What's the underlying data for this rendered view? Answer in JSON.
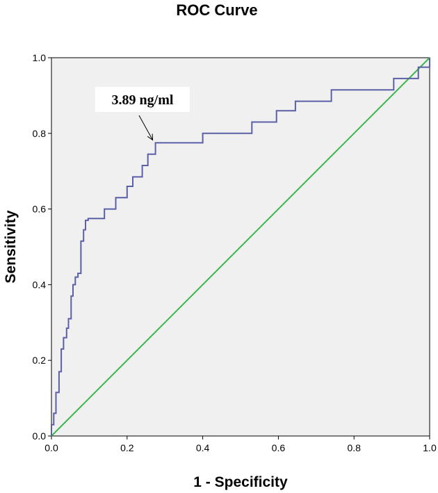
{
  "chart_data": {
    "type": "line",
    "title": "ROC Curve",
    "xlabel": "1 - Specificity",
    "ylabel": "Sensitivity",
    "xlim": [
      0.0,
      1.0
    ],
    "ylim": [
      0.0,
      1.0
    ],
    "x_ticks": [
      "0.0",
      "0.2",
      "0.4",
      "0.6",
      "0.8",
      "1.0"
    ],
    "y_ticks": [
      "0.0",
      "0.2",
      "0.4",
      "0.6",
      "0.8",
      "1.0"
    ],
    "grid": false,
    "legend": "none",
    "background_color": "#f0f0f0",
    "series": [
      {
        "color": "#5b5fa8",
        "step": true,
        "x": [
          0.0,
          0.0,
          0.006,
          0.006,
          0.012,
          0.012,
          0.02,
          0.02,
          0.026,
          0.026,
          0.032,
          0.032,
          0.04,
          0.04,
          0.045,
          0.045,
          0.052,
          0.052,
          0.057,
          0.057,
          0.063,
          0.063,
          0.07,
          0.07,
          0.078,
          0.078,
          0.085,
          0.085,
          0.09,
          0.09,
          0.097,
          0.097,
          0.103,
          0.103,
          0.11,
          0.11,
          0.14,
          0.14,
          0.155,
          0.155,
          0.17,
          0.17,
          0.2,
          0.2,
          0.215,
          0.215,
          0.24,
          0.24,
          0.255,
          0.255,
          0.275,
          0.275,
          0.4,
          0.4,
          0.53,
          0.53,
          0.595,
          0.595,
          0.645,
          0.645,
          0.74,
          0.74,
          0.905,
          0.905,
          0.97,
          0.97,
          0.975,
          0.975,
          1.0,
          1.0
        ],
        "y": [
          0.0,
          0.03,
          0.03,
          0.06,
          0.06,
          0.115,
          0.115,
          0.17,
          0.17,
          0.23,
          0.23,
          0.26,
          0.26,
          0.285,
          0.285,
          0.31,
          0.31,
          0.37,
          0.37,
          0.4,
          0.4,
          0.42,
          0.42,
          0.43,
          0.43,
          0.515,
          0.515,
          0.545,
          0.545,
          0.57,
          0.57,
          0.575,
          0.575,
          0.575,
          0.575,
          0.575,
          0.575,
          0.6,
          0.6,
          0.6,
          0.6,
          0.63,
          0.63,
          0.66,
          0.66,
          0.685,
          0.685,
          0.715,
          0.715,
          0.745,
          0.745,
          0.775,
          0.775,
          0.8,
          0.8,
          0.83,
          0.83,
          0.86,
          0.86,
          0.885,
          0.885,
          0.915,
          0.915,
          0.945,
          0.945,
          0.975,
          0.975,
          0.975,
          0.975,
          1.0
        ]
      },
      {
        "color": "#3cb44b",
        "x": [
          0.0,
          1.0
        ],
        "y": [
          0.0,
          1.0
        ]
      }
    ],
    "annotations": [
      {
        "text": "3.89 ng/ml",
        "point_x": 0.275,
        "point_y": 0.775
      }
    ]
  }
}
